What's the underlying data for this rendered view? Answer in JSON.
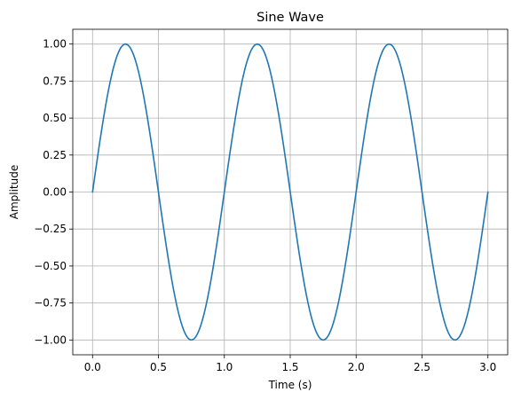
{
  "chart_data": {
    "type": "line",
    "title": "Sine Wave",
    "xlabel": "Time (s)",
    "ylabel": "Amplitude",
    "xlim": [
      -0.15,
      3.15
    ],
    "ylim": [
      -1.1,
      1.1
    ],
    "xticks": [
      0.0,
      0.5,
      1.0,
      1.5,
      2.0,
      2.5,
      3.0
    ],
    "xtick_labels": [
      "0.0",
      "0.5",
      "1.0",
      "1.5",
      "2.0",
      "2.5",
      "3.0"
    ],
    "yticks": [
      -1.0,
      -0.75,
      -0.5,
      -0.25,
      0.0,
      0.25,
      0.5,
      0.75,
      1.0
    ],
    "ytick_labels": [
      "−1.00",
      "−0.75",
      "−0.50",
      "−0.25",
      "0.00",
      "0.25",
      "0.50",
      "0.75",
      "1.00"
    ],
    "grid": true,
    "series": [
      {
        "function": "sin(2*pi*t)",
        "frequency_hz": 1,
        "amplitude": 1,
        "x_start": 0,
        "x_end": 3,
        "points": 300,
        "color": "#1f77b4"
      }
    ]
  },
  "colors": {
    "line": "#1f77b4",
    "grid": "#b0b0b0",
    "axes": "#000000",
    "background": "#ffffff"
  }
}
